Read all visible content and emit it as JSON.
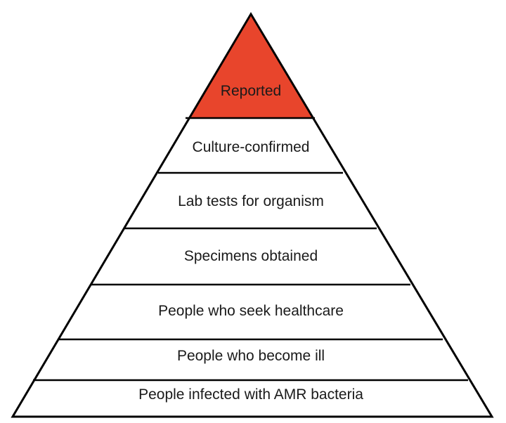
{
  "diagram": {
    "type": "pyramid",
    "levels": [
      {
        "label": "Reported",
        "highlighted": true
      },
      {
        "label": "Culture-confirmed",
        "highlighted": false
      },
      {
        "label": "Lab tests for organism",
        "highlighted": false
      },
      {
        "label": "Specimens obtained",
        "highlighted": false
      },
      {
        "label": "People who seek healthcare",
        "highlighted": false
      },
      {
        "label": "People who become ill",
        "highlighted": false
      },
      {
        "label": "People infected with AMR bacteria",
        "highlighted": false
      }
    ],
    "colors": {
      "highlight": "#E8452C",
      "outline": "#000000",
      "text": "#1A1A1A",
      "background": "#FFFFFF"
    }
  }
}
